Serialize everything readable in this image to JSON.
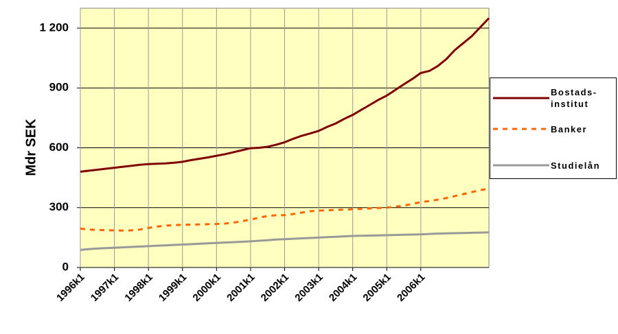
{
  "chart_data": {
    "type": "line",
    "y_label": "Mdr SEK",
    "categories": [
      "1996k1",
      null,
      null,
      null,
      "1997k1",
      null,
      null,
      null,
      "1998k1",
      null,
      null,
      null,
      "1999k1",
      null,
      null,
      null,
      "2000k1",
      null,
      null,
      null,
      "2001k1",
      null,
      null,
      null,
      "2002k1",
      null,
      null,
      null,
      "2003k1",
      null,
      null,
      null,
      "2004k1",
      null,
      null,
      null,
      "2005k1",
      null,
      null,
      null,
      "2006k1",
      null,
      null,
      null,
      null,
      null,
      null,
      null,
      null
    ],
    "series": [
      {
        "name": "Bostads-\ninstitut",
        "color": "#800000",
        "dash": "solid",
        "values": [
          480,
          485,
          490,
          495,
          500,
          505,
          510,
          515,
          518,
          520,
          522,
          525,
          530,
          538,
          545,
          552,
          560,
          568,
          578,
          588,
          598,
          600,
          605,
          615,
          628,
          645,
          660,
          672,
          685,
          705,
          722,
          745,
          765,
          790,
          815,
          840,
          862,
          890,
          918,
          945,
          975,
          985,
          1010,
          1045,
          1090,
          1125,
          1160,
          1205,
          1250
        ]
      },
      {
        "name": "Banker",
        "color": "#ff6600",
        "dash": "dashed",
        "values": [
          195,
          190,
          188,
          187,
          186,
          185,
          186,
          190,
          198,
          205,
          210,
          212,
          214,
          215,
          216,
          217,
          218,
          220,
          225,
          232,
          240,
          250,
          258,
          262,
          262,
          268,
          275,
          282,
          285,
          287,
          288,
          290,
          292,
          294,
          296,
          298,
          300,
          305,
          310,
          318,
          328,
          333,
          340,
          348,
          358,
          368,
          378,
          388,
          395
        ]
      },
      {
        "name": "Studielån",
        "color": "#999999",
        "dash": "solid",
        "values": [
          88,
          92,
          95,
          97,
          99,
          101,
          103,
          105,
          107,
          109,
          111,
          113,
          115,
          117,
          119,
          121,
          123,
          125,
          127,
          129,
          131,
          134,
          137,
          140,
          142,
          144,
          146,
          148,
          150,
          152,
          154,
          156,
          158,
          159,
          160,
          161,
          162,
          163,
          164,
          165,
          166,
          168,
          170,
          171,
          172,
          173,
          174,
          175,
          176
        ]
      }
    ],
    "ylim": [
      0,
      1200
    ],
    "yticks": [
      0,
      300,
      600,
      900,
      {
        "value": 1200,
        "label": "1 200"
      }
    ],
    "grid": true,
    "legend": "right"
  }
}
